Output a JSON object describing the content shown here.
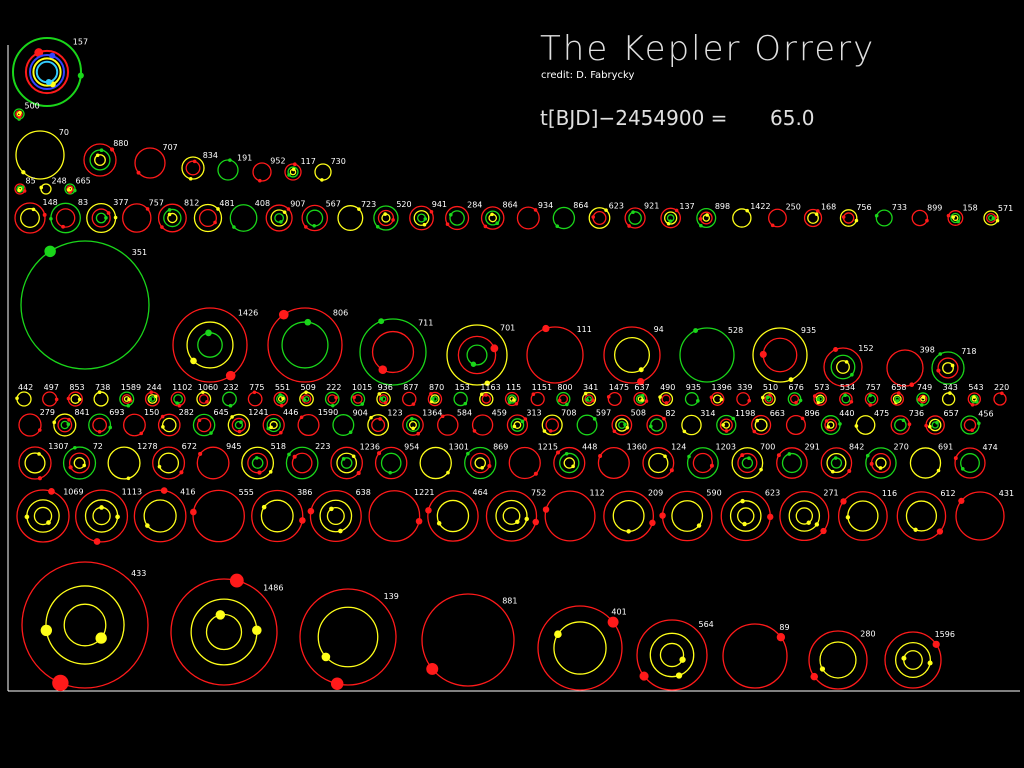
{
  "title": "The Kepler Orrery",
  "credit": "credit: D. Fabrycky",
  "time_label": "t[BJD]−2454900 =",
  "time_value": "65.0",
  "rows": [
    [
      "157"
    ],
    [
      "500"
    ],
    [
      "70",
      "880",
      "707",
      "834",
      "191",
      "952",
      "117",
      "730"
    ],
    [
      "85",
      "248",
      "665"
    ],
    [
      "148",
      "83",
      "377",
      "757",
      "812",
      "481",
      "408",
      "907",
      "567",
      "723",
      "520",
      "941",
      "284",
      "864",
      "934",
      "864",
      "623",
      "921",
      "137",
      "898",
      "1422",
      "250",
      "168",
      "756",
      "733",
      "899",
      "158",
      "571"
    ],
    [
      "351",
      "1426",
      "806",
      "711",
      "701",
      "111",
      "94",
      "528",
      "935",
      "152",
      "398",
      "718"
    ],
    [
      "442",
      "497",
      "853",
      "738",
      "1589",
      "244",
      "1102",
      "1060",
      "232",
      "775",
      "551",
      "509",
      "222",
      "1015",
      "936",
      "877",
      "870",
      "153",
      "1163",
      "115",
      "1151",
      "800",
      "341",
      "1475",
      "637",
      "490",
      "935",
      "1396",
      "339",
      "510",
      "676",
      "573",
      "534",
      "757",
      "658",
      "749",
      "343",
      "543",
      "220"
    ],
    [
      "279",
      "841",
      "693",
      "150",
      "282",
      "645",
      "1241",
      "446",
      "1590",
      "904",
      "123",
      "1364",
      "584",
      "459",
      "313",
      "708",
      "597",
      "508",
      "82",
      "314",
      "1198",
      "663",
      "896",
      "440",
      "475",
      "736",
      "657",
      "456"
    ],
    [
      "1307",
      "72",
      "1278",
      "672",
      "945",
      "518",
      "223",
      "1236",
      "954",
      "1301",
      "869",
      "1215",
      "448",
      "1360",
      "124",
      "1203",
      "700",
      "291",
      "842",
      "270",
      "691",
      "474"
    ],
    [
      "1069",
      "1113",
      "416",
      "555",
      "386",
      "638",
      "1221",
      "464",
      "752",
      "112",
      "209",
      "590",
      "623",
      "271",
      "116",
      "612",
      "431"
    ],
    [
      "433",
      "1486",
      "139",
      "881",
      "401",
      "564",
      "89",
      "280",
      "1596"
    ]
  ]
}
